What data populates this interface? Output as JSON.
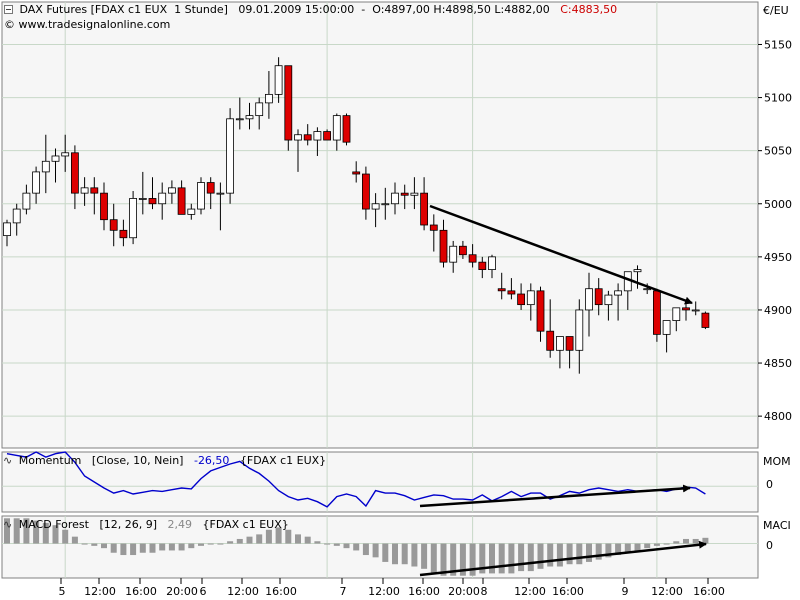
{
  "header": {
    "main": {
      "icon": "minus-box-icon",
      "title": "DAX Futures [FDAX c1 EUX  1 Stunde]",
      "datetime": "09.01.2009 15:00:00",
      "ohlc": "O:4897,00 H:4898,50 L:4882,00",
      "close": "C:4883,50",
      "close_color": "#cc0000",
      "copyright": "© www.tradesignalonline.com"
    },
    "momentum": {
      "icon": "wave-icon",
      "name": "Momentum",
      "params": "[Close, 10, Nein]",
      "value": "-26,50",
      "value_color": "#0000cc",
      "source": "{FDAX c1 EUX}",
      "axis_label": "MOM",
      "zero_label": "0"
    },
    "macd": {
      "icon": "wave-icon",
      "name": "MACD Forest",
      "params": "[12, 26, 9]",
      "value": "2,49",
      "value_color": "#888888",
      "source": "{FDAX c1 EUX}",
      "axis_label": "MACI",
      "zero_label": "0"
    }
  },
  "colors": {
    "up_candle": "#ffffff",
    "down_candle": "#dd0000",
    "momentum_line": "#0000cc",
    "macd_bars": "#999999",
    "grid": "#c8d8c8",
    "arrows": "#000000"
  },
  "chart_data": [
    {
      "type": "candlestick",
      "title": "DAX Futures [FDAX c1 EUX  1 Stunde]",
      "ylabel": "€/EU",
      "y_ticks": [
        4800,
        4850,
        4900,
        4950,
        5000,
        5050,
        5100,
        5150
      ],
      "ylim": [
        4770,
        5190
      ],
      "x_tick_labels": [
        "5",
        "12:00",
        "16:00",
        "20:00",
        "6",
        "12:00",
        "16:00",
        "7",
        "12:00",
        "16:00",
        "20:00",
        "8",
        "12:00",
        "16:00",
        "9",
        "12:00",
        "16:00"
      ],
      "grid": true,
      "candles": [
        [
          4970,
          4985,
          4960,
          4982
        ],
        [
          4982,
          5000,
          4970,
          4995
        ],
        [
          4995,
          5018,
          4990,
          5010
        ],
        [
          5010,
          5035,
          5000,
          5030
        ],
        [
          5030,
          5065,
          5010,
          5040
        ],
        [
          5040,
          5052,
          5020,
          5045
        ],
        [
          5045,
          5065,
          5030,
          5048
        ],
        [
          5048,
          5055,
          4995,
          5010
        ],
        [
          5010,
          5025,
          4998,
          5015
        ],
        [
          5015,
          5025,
          4990,
          5010
        ],
        [
          5010,
          5020,
          4975,
          4985
        ],
        [
          4985,
          5000,
          4960,
          4975
        ],
        [
          4975,
          4985,
          4960,
          4968
        ],
        [
          4968,
          5012,
          4962,
          5005
        ],
        [
          5005,
          5030,
          4990,
          5005
        ],
        [
          5005,
          5025,
          4995,
          5000
        ],
        [
          5000,
          5020,
          4985,
          5010
        ],
        [
          5010,
          5022,
          5000,
          5015
        ],
        [
          5015,
          5022,
          4990,
          4990
        ],
        [
          4990,
          5000,
          4985,
          4995
        ],
        [
          4995,
          5025,
          4990,
          5020
        ],
        [
          5020,
          5025,
          4995,
          5010
        ],
        [
          5010,
          5020,
          4975,
          5010
        ],
        [
          5010,
          5090,
          5000,
          5080
        ],
        [
          5080,
          5100,
          5070,
          5080
        ],
        [
          5080,
          5095,
          5070,
          5083
        ],
        [
          5083,
          5100,
          5070,
          5095
        ],
        [
          5095,
          5125,
          5080,
          5103
        ],
        [
          5103,
          5138,
          5095,
          5130
        ],
        [
          5130,
          5130,
          5050,
          5060
        ],
        [
          5060,
          5070,
          5030,
          5065
        ],
        [
          5065,
          5075,
          5055,
          5060
        ],
        [
          5060,
          5072,
          5045,
          5068
        ],
        [
          5068,
          5070,
          5060,
          5060
        ],
        [
          5060,
          5085,
          5050,
          5083
        ],
        [
          5083,
          5085,
          5055,
          5058
        ],
        [
          5030,
          5040,
          5020,
          5028
        ],
        [
          5028,
          5035,
          4985,
          4995
        ],
        [
          4995,
          5010,
          4978,
          5000
        ],
        [
          5000,
          5015,
          4985,
          5000
        ],
        [
          5000,
          5020,
          4990,
          5010
        ],
        [
          5010,
          5018,
          4995,
          5008
        ],
        [
          5008,
          5025,
          4995,
          5010
        ],
        [
          5010,
          5025,
          4975,
          4980
        ],
        [
          4980,
          4990,
          4955,
          4975
        ],
        [
          4975,
          4985,
          4940,
          4945
        ],
        [
          4945,
          4965,
          4935,
          4960
        ],
        [
          4960,
          4965,
          4948,
          4952
        ],
        [
          4952,
          4962,
          4940,
          4945
        ],
        [
          4945,
          4950,
          4930,
          4938
        ],
        [
          4938,
          4952,
          4930,
          4950
        ],
        [
          4920,
          4935,
          4910,
          4918
        ],
        [
          4918,
          4930,
          4910,
          4915
        ],
        [
          4915,
          4925,
          4900,
          4905
        ],
        [
          4905,
          4925,
          4890,
          4918
        ],
        [
          4918,
          4922,
          4870,
          4880
        ],
        [
          4880,
          4910,
          4855,
          4862
        ],
        [
          4862,
          4875,
          4845,
          4875
        ],
        [
          4875,
          4875,
          4845,
          4862
        ],
        [
          4862,
          4910,
          4840,
          4900
        ],
        [
          4900,
          4935,
          4875,
          4920
        ],
        [
          4920,
          4930,
          4895,
          4905
        ],
        [
          4905,
          4918,
          4890,
          4914
        ],
        [
          4914,
          4925,
          4890,
          4918
        ],
        [
          4918,
          4935,
          4900,
          4936
        ],
        [
          4936,
          4942,
          4920,
          4938
        ],
        [
          4920,
          4925,
          4915,
          4920
        ],
        [
          4918,
          4920,
          4870,
          4877
        ],
        [
          4877,
          4890,
          4860,
          4890
        ],
        [
          4890,
          4902,
          4880,
          4902
        ],
        [
          4902,
          4910,
          4890,
          4900
        ],
        [
          4900,
          4908,
          4895,
          4900
        ],
        [
          4897,
          4898.5,
          4882,
          4883.5
        ]
      ],
      "annotations": [
        {
          "type": "arrow",
          "direction": "down-right",
          "from": [
            4,
            5000
          ],
          "to": [
            8.5,
            4920
          ]
        }
      ]
    },
    {
      "type": "line",
      "title": "Momentum",
      "series": [
        {
          "name": "Momentum [Close, 10, Nein]",
          "values": [
            3.8,
            3.6,
            3.4,
            4,
            3.4,
            3.8,
            4,
            2.8,
            1.2,
            0.5,
            -0.2,
            -0.8,
            -0.5,
            -0.9,
            -0.7,
            -0.5,
            -0.6,
            -0.4,
            -0.2,
            -0.3,
            0.9,
            1.8,
            2.2,
            2.6,
            2.9,
            2.1,
            1.5,
            0.6,
            -0.5,
            -1.2,
            -1.6,
            -1.4,
            -1.8,
            -2.4,
            -1.2,
            -0.9,
            -1.2,
            -2.3,
            -0.5,
            -0.8,
            -0.8,
            -1.1,
            -1.6,
            -1.3,
            -1.0,
            -1.1,
            -1.5,
            -1.5,
            -1.6,
            -1.0,
            -1.7,
            -1.2,
            -0.6,
            -1.2,
            -0.8,
            -0.8,
            -1.5,
            -1.1,
            -0.6,
            -0.8,
            -0.4,
            -0.2,
            -0.4,
            -0.6,
            -0.4,
            -0.6,
            -0.5,
            -0.4,
            -0.6,
            -0.3,
            -0.1,
            -0.2,
            -0.9
          ]
        }
      ],
      "ylabel": "MOM",
      "y_ticks": [
        0
      ],
      "ylim": [
        -3,
        4
      ],
      "annotations": [
        {
          "type": "arrow",
          "direction": "up-right",
          "from": [
            1,
            -2.4
          ],
          "to": [
            3,
            -0.5
          ]
        }
      ]
    },
    {
      "type": "bar",
      "title": "MACD Forest",
      "series": [
        {
          "name": "MACD Forest [12, 26, 9]",
          "values": [
            11,
            11,
            11,
            10,
            9,
            8,
            6,
            3,
            0,
            -1,
            -2,
            -4,
            -5,
            -5,
            -4,
            -4,
            -3,
            -3,
            -3,
            -2,
            -1,
            0,
            0,
            1,
            2,
            3,
            4,
            6,
            7,
            6,
            4,
            3,
            1,
            0,
            -1,
            -2,
            -3,
            -5,
            -6,
            -8,
            -9,
            -9,
            -10,
            -11,
            -13,
            -14,
            -14,
            -14,
            -14,
            -13,
            -13,
            -13,
            -13,
            -12,
            -12,
            -11,
            -10,
            -10,
            -9,
            -9,
            -8,
            -7,
            -6,
            -5,
            -4,
            -3,
            -2,
            -1,
            0,
            1,
            2,
            2,
            2.5
          ]
        }
      ],
      "ylabel": "MACI",
      "y_ticks": [
        0
      ],
      "ylim": [
        -15,
        12
      ],
      "annotations": [
        {
          "type": "arrow",
          "direction": "up-right",
          "from": [
            1,
            -14
          ],
          "to": [
            3,
            -1
          ]
        }
      ]
    }
  ]
}
